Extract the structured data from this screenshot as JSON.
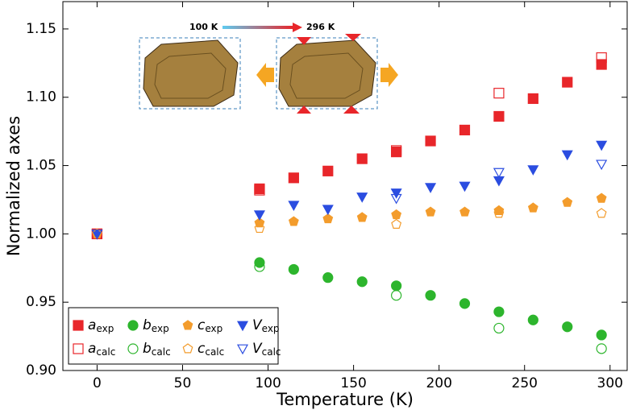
{
  "chart_data": {
    "type": "scatter",
    "xlabel": "Temperature (K)",
    "ylabel": "Normalized axes",
    "xlim": [
      -20,
      310
    ],
    "ylim": [
      0.9,
      1.17
    ],
    "xticks": [
      0,
      50,
      100,
      150,
      200,
      250,
      300
    ],
    "yticks": [
      {
        "value": 0.9,
        "label": "0.90"
      },
      0.95,
      {
        "value": 1.0,
        "label": "1.00"
      },
      1.05,
      {
        "value": 1.1,
        "label": "1.10"
      },
      1.15
    ],
    "annotations": [
      "100 K",
      "296 K"
    ],
    "legend": "lower left",
    "series": [
      {
        "name": "a",
        "subscript": "exp",
        "color": "#e8262a",
        "marker": "square",
        "filled": true,
        "x": [
          0,
          95,
          115,
          135,
          155,
          175,
          195,
          215,
          235,
          255,
          275,
          295
        ],
        "values": [
          1.0,
          1.033,
          1.041,
          1.046,
          1.055,
          1.06,
          1.068,
          1.076,
          1.086,
          1.099,
          1.111,
          1.124
        ]
      },
      {
        "name": "b",
        "subscript": "exp",
        "color": "#2db52d",
        "marker": "circle",
        "filled": true,
        "x": [
          95,
          115,
          135,
          155,
          175,
          195,
          215,
          235,
          255,
          275,
          295
        ],
        "values": [
          0.979,
          0.974,
          0.968,
          0.965,
          0.962,
          0.955,
          0.949,
          0.943,
          0.937,
          0.932,
          0.926
        ]
      },
      {
        "name": "c",
        "subscript": "exp",
        "color": "#f39c2c",
        "marker": "pentagon",
        "filled": true,
        "x": [
          0,
          95,
          115,
          135,
          155,
          175,
          195,
          215,
          235,
          255,
          275,
          295
        ],
        "values": [
          1.0,
          1.008,
          1.009,
          1.011,
          1.012,
          1.014,
          1.016,
          1.016,
          1.017,
          1.019,
          1.023,
          1.026
        ]
      },
      {
        "name": "V",
        "subscript": "exp",
        "color": "#2b4de0",
        "marker": "triangle-down",
        "filled": true,
        "x": [
          0,
          95,
          115,
          135,
          155,
          175,
          195,
          215,
          235,
          255,
          275,
          295
        ],
        "values": [
          1.0,
          1.014,
          1.021,
          1.018,
          1.027,
          1.03,
          1.034,
          1.035,
          1.039,
          1.047,
          1.058,
          1.065
        ]
      },
      {
        "name": "a",
        "subscript": "calc",
        "color": "#e8262a",
        "marker": "square",
        "filled": false,
        "x": [
          0,
          95,
          175,
          235,
          295
        ],
        "values": [
          1.0,
          1.032,
          1.061,
          1.103,
          1.129
        ]
      },
      {
        "name": "b",
        "subscript": "calc",
        "color": "#2db52d",
        "marker": "circle",
        "filled": false,
        "x": [
          95,
          175,
          235,
          295
        ],
        "values": [
          0.976,
          0.955,
          0.931,
          0.916
        ]
      },
      {
        "name": "c",
        "subscript": "calc",
        "color": "#f39c2c",
        "marker": "pentagon",
        "filled": false,
        "x": [
          0,
          95,
          175,
          235,
          295
        ],
        "values": [
          1.0,
          1.004,
          1.007,
          1.015,
          1.015
        ]
      },
      {
        "name": "V",
        "subscript": "calc",
        "color": "#2b4de0",
        "marker": "triangle-down",
        "filled": false,
        "x": [
          0,
          175,
          235,
          295
        ],
        "values": [
          1.0,
          1.026,
          1.045,
          1.051
        ]
      }
    ]
  }
}
